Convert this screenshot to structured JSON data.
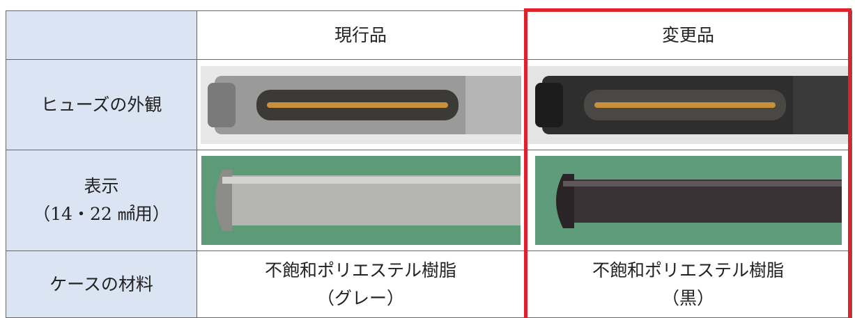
{
  "table": {
    "columns": [
      "現行品",
      "変更品"
    ],
    "rows": [
      {
        "label": "ヒューズの外観"
      },
      {
        "label": [
          "表示",
          "（14・22 ㎟用）"
        ]
      },
      {
        "label": "ケースの材料",
        "current": [
          "不飽和ポリエステル樹脂",
          "（グレー）"
        ],
        "changed": [
          "不飽和ポリエステル樹脂",
          "（黒）"
        ]
      }
    ]
  }
}
